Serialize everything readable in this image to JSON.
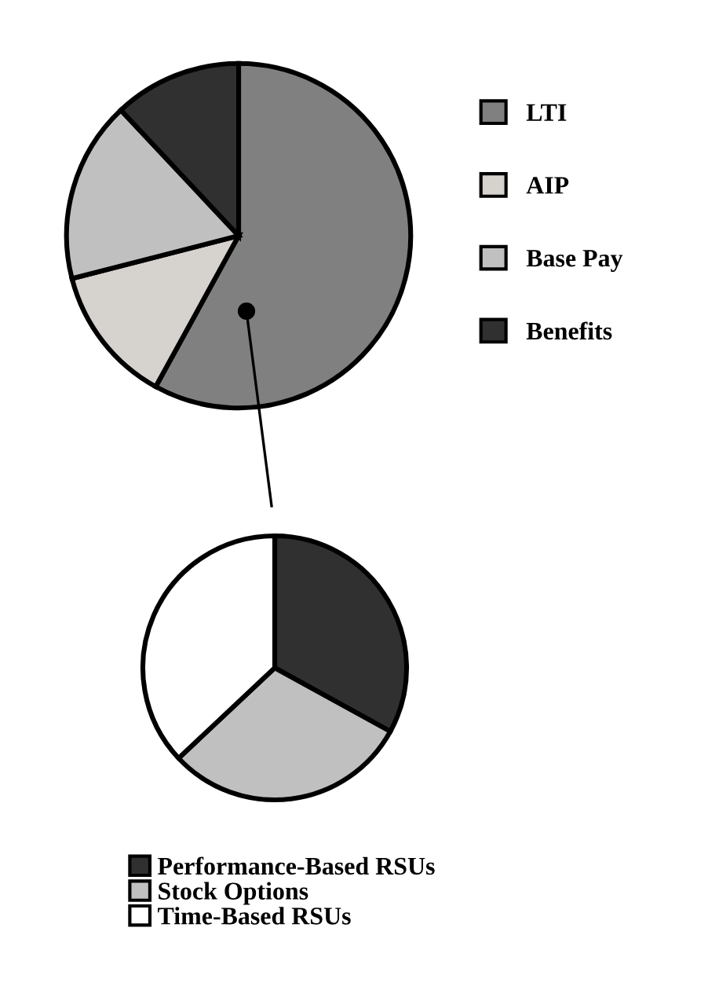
{
  "chart_data": [
    {
      "type": "pie",
      "categories": [
        "LTI",
        "AIP",
        "Base Pay",
        "Benefits"
      ],
      "values": [
        58,
        13,
        17,
        12
      ],
      "colors": [
        "#808080",
        "#d6d2ce",
        "#c0c0c0",
        "#303030"
      ],
      "legend": "right"
    },
    {
      "type": "pie",
      "categories": [
        "Performance-Based RSUs",
        "Stock Options",
        "Time-Based RSUs"
      ],
      "values": [
        33,
        30,
        37
      ],
      "colors": [
        "#303030",
        "#c0c0c0",
        "#ffffff"
      ],
      "legend": "bottom"
    }
  ]
}
